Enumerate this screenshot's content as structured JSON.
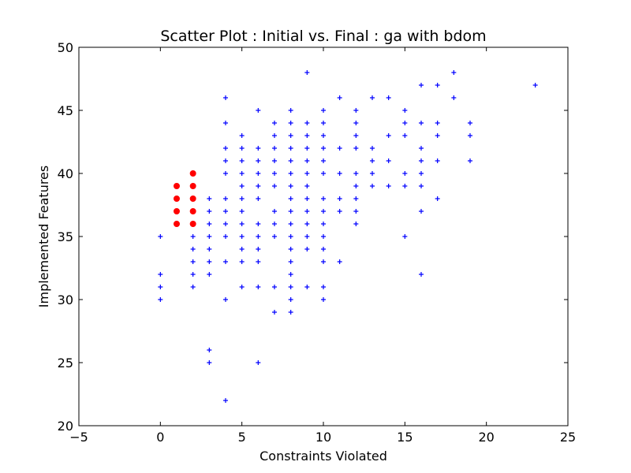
{
  "chart_data": {
    "type": "scatter",
    "title": "Scatter Plot : Initial vs. Final : ga with bdom",
    "xlabel": "Constraints Violated",
    "ylabel": "Implemented Features",
    "xlim": [
      -5,
      25
    ],
    "ylim": [
      20,
      50
    ],
    "xticks": [
      -5,
      0,
      5,
      10,
      15,
      20,
      25
    ],
    "yticks": [
      20,
      25,
      30,
      35,
      40,
      45,
      50
    ],
    "grid": false,
    "legend": "none",
    "series": [
      {
        "marker": "plus",
        "color": "#0000ff",
        "points": [
          [
            0,
            35
          ],
          [
            0,
            32
          ],
          [
            0,
            31
          ],
          [
            0,
            30
          ],
          [
            2,
            38
          ],
          [
            2,
            37
          ],
          [
            2,
            36
          ],
          [
            2,
            35
          ],
          [
            2,
            34
          ],
          [
            2,
            33
          ],
          [
            2,
            32
          ],
          [
            2,
            31
          ],
          [
            3,
            38
          ],
          [
            3,
            37
          ],
          [
            3,
            36
          ],
          [
            3,
            35
          ],
          [
            3,
            34
          ],
          [
            3,
            33
          ],
          [
            3,
            32
          ],
          [
            3,
            26
          ],
          [
            3,
            25
          ],
          [
            4,
            46
          ],
          [
            4,
            44
          ],
          [
            4,
            42
          ],
          [
            4,
            41
          ],
          [
            4,
            40
          ],
          [
            4,
            38
          ],
          [
            4,
            37
          ],
          [
            4,
            36
          ],
          [
            4,
            35
          ],
          [
            4,
            33
          ],
          [
            4,
            30
          ],
          [
            4,
            22
          ],
          [
            5,
            43
          ],
          [
            5,
            42
          ],
          [
            5,
            41
          ],
          [
            5,
            40
          ],
          [
            5,
            39
          ],
          [
            5,
            38
          ],
          [
            5,
            37
          ],
          [
            5,
            36
          ],
          [
            5,
            35
          ],
          [
            5,
            34
          ],
          [
            5,
            33
          ],
          [
            5,
            31
          ],
          [
            6,
            45
          ],
          [
            6,
            42
          ],
          [
            6,
            41
          ],
          [
            6,
            40
          ],
          [
            6,
            39
          ],
          [
            6,
            38
          ],
          [
            6,
            36
          ],
          [
            6,
            35
          ],
          [
            6,
            34
          ],
          [
            6,
            33
          ],
          [
            6,
            31
          ],
          [
            6,
            25
          ],
          [
            7,
            44
          ],
          [
            7,
            43
          ],
          [
            7,
            42
          ],
          [
            7,
            41
          ],
          [
            7,
            40
          ],
          [
            7,
            39
          ],
          [
            7,
            37
          ],
          [
            7,
            36
          ],
          [
            7,
            35
          ],
          [
            7,
            31
          ],
          [
            7,
            29
          ],
          [
            8,
            45
          ],
          [
            8,
            44
          ],
          [
            8,
            43
          ],
          [
            8,
            42
          ],
          [
            8,
            41
          ],
          [
            8,
            40
          ],
          [
            8,
            39
          ],
          [
            8,
            38
          ],
          [
            8,
            37
          ],
          [
            8,
            36
          ],
          [
            8,
            35
          ],
          [
            8,
            34
          ],
          [
            8,
            33
          ],
          [
            8,
            32
          ],
          [
            8,
            31
          ],
          [
            8,
            30
          ],
          [
            8,
            29
          ],
          [
            9,
            48
          ],
          [
            9,
            44
          ],
          [
            9,
            43
          ],
          [
            9,
            42
          ],
          [
            9,
            41
          ],
          [
            9,
            40
          ],
          [
            9,
            39
          ],
          [
            9,
            38
          ],
          [
            9,
            37
          ],
          [
            9,
            36
          ],
          [
            9,
            35
          ],
          [
            9,
            34
          ],
          [
            9,
            31
          ],
          [
            10,
            45
          ],
          [
            10,
            44
          ],
          [
            10,
            43
          ],
          [
            10,
            42
          ],
          [
            10,
            41
          ],
          [
            10,
            40
          ],
          [
            10,
            38
          ],
          [
            10,
            37
          ],
          [
            10,
            36
          ],
          [
            10,
            35
          ],
          [
            10,
            34
          ],
          [
            10,
            33
          ],
          [
            10,
            31
          ],
          [
            10,
            30
          ],
          [
            11,
            46
          ],
          [
            11,
            42
          ],
          [
            11,
            40
          ],
          [
            11,
            38
          ],
          [
            11,
            37
          ],
          [
            11,
            33
          ],
          [
            12,
            45
          ],
          [
            12,
            44
          ],
          [
            12,
            43
          ],
          [
            12,
            42
          ],
          [
            12,
            40
          ],
          [
            12,
            39
          ],
          [
            12,
            38
          ],
          [
            12,
            37
          ],
          [
            12,
            36
          ],
          [
            13,
            46
          ],
          [
            13,
            42
          ],
          [
            13,
            41
          ],
          [
            13,
            40
          ],
          [
            13,
            39
          ],
          [
            14,
            46
          ],
          [
            14,
            43
          ],
          [
            14,
            41
          ],
          [
            14,
            39
          ],
          [
            15,
            45
          ],
          [
            15,
            44
          ],
          [
            15,
            43
          ],
          [
            15,
            40
          ],
          [
            15,
            39
          ],
          [
            15,
            35
          ],
          [
            16,
            47
          ],
          [
            16,
            44
          ],
          [
            16,
            42
          ],
          [
            16,
            41
          ],
          [
            16,
            40
          ],
          [
            16,
            39
          ],
          [
            16,
            37
          ],
          [
            16,
            32
          ],
          [
            17,
            47
          ],
          [
            17,
            44
          ],
          [
            17,
            43
          ],
          [
            17,
            41
          ],
          [
            17,
            38
          ],
          [
            18,
            48
          ],
          [
            18,
            46
          ],
          [
            19,
            44
          ],
          [
            19,
            43
          ],
          [
            19,
            41
          ],
          [
            23,
            47
          ]
        ]
      },
      {
        "marker": "circle",
        "color": "#ff0000",
        "points": [
          [
            1,
            39
          ],
          [
            1,
            38
          ],
          [
            1,
            37
          ],
          [
            1,
            36
          ],
          [
            2,
            40
          ],
          [
            2,
            39
          ],
          [
            2,
            38
          ],
          [
            2,
            37
          ],
          [
            2,
            36
          ]
        ]
      }
    ]
  }
}
